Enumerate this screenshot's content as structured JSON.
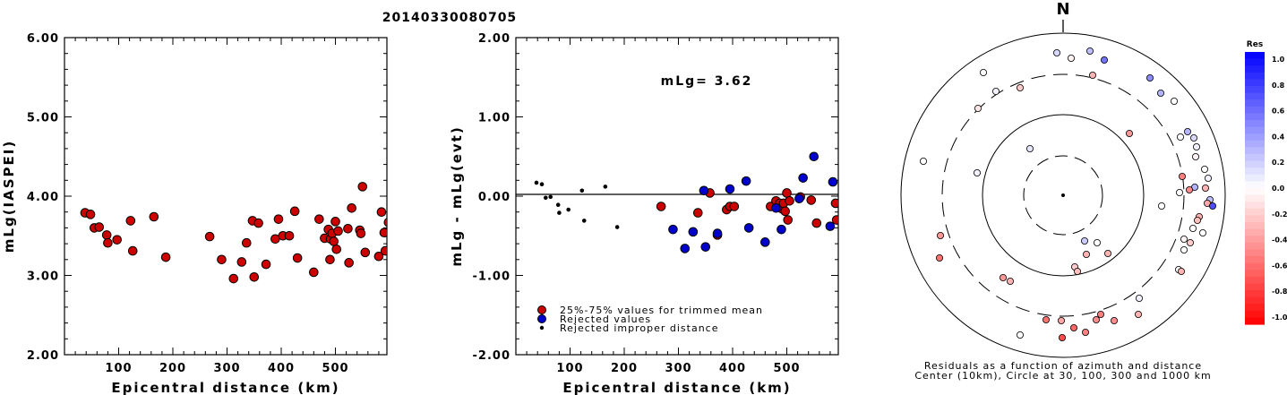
{
  "title": "20140330080705",
  "chart_data": [
    {
      "type": "scatter",
      "xlabel": "Epicentral distance (km)",
      "ylabel": "mLg(IASPEI)",
      "xlim": [
        0,
        595
      ],
      "ylim": [
        2.0,
        6.0
      ],
      "xticks": [
        "100",
        "200",
        "300",
        "400",
        "500"
      ],
      "yticks": [
        "2.00",
        "3.00",
        "4.00",
        "5.00",
        "6.00"
      ],
      "series": [
        {
          "color": "#cc0000",
          "points": [
            [
              38,
              3.79
            ],
            [
              48,
              3.77
            ],
            [
              55,
              3.6
            ],
            [
              64,
              3.61
            ],
            [
              78,
              3.51
            ],
            [
              80,
              3.41
            ],
            [
              97,
              3.45
            ],
            [
              122,
              3.69
            ],
            [
              126,
              3.31
            ],
            [
              165,
              3.74
            ],
            [
              187,
              3.23
            ],
            [
              268,
              3.49
            ],
            [
              290,
              3.2
            ],
            [
              312,
              2.96
            ],
            [
              327,
              3.17
            ],
            [
              336,
              3.41
            ],
            [
              347,
              3.69
            ],
            [
              350,
              2.98
            ],
            [
              358,
              3.66
            ],
            [
              372,
              3.14
            ],
            [
              389,
              3.46
            ],
            [
              395,
              3.71
            ],
            [
              403,
              3.5
            ],
            [
              415,
              3.5
            ],
            [
              425,
              3.81
            ],
            [
              430,
              3.22
            ],
            [
              460,
              3.04
            ],
            [
              470,
              3.71
            ],
            [
              480,
              3.47
            ],
            [
              487,
              3.58
            ],
            [
              490,
              3.2
            ],
            [
              491,
              3.46
            ],
            [
              494,
              3.53
            ],
            [
              497,
              3.43
            ],
            [
              500,
              3.68
            ],
            [
              502,
              3.33
            ],
            [
              505,
              3.56
            ],
            [
              523,
              3.59
            ],
            [
              525,
              3.16
            ],
            [
              530,
              3.85
            ],
            [
              545,
              3.57
            ],
            [
              547,
              3.53
            ],
            [
              550,
              4.12
            ],
            [
              555,
              3.29
            ],
            [
              580,
              3.24
            ],
            [
              585,
              3.8
            ],
            [
              590,
              3.54
            ],
            [
              592,
              3.31
            ],
            [
              598,
              3.67
            ]
          ]
        }
      ]
    },
    {
      "type": "scatter",
      "xlabel": "Epicentral distance (km)",
      "ylabel": "mLg - mLg(evt)",
      "xlim": [
        0,
        595
      ],
      "ylim": [
        -2.0,
        2.0
      ],
      "xticks": [
        "100",
        "200",
        "300",
        "400",
        "500"
      ],
      "yticks": [
        "-2.00",
        "-1.00",
        "0.00",
        "1.00",
        "2.00"
      ],
      "annotation": "mLg= 3.62",
      "legend": [
        "25%-75% values for trimmed mean",
        "Rejected values",
        "Rejected improper distance"
      ],
      "series": [
        {
          "name": "25%-75% values for trimmed mean",
          "color": "#cc0000",
          "points": [
            [
              268,
              -0.13
            ],
            [
              336,
              -0.21
            ],
            [
              358,
              0.04
            ],
            [
              372,
              -0.49
            ],
            [
              389,
              -0.17
            ],
            [
              395,
              -0.13
            ],
            [
              403,
              -0.13
            ],
            [
              470,
              -0.13
            ],
            [
              480,
              -0.06
            ],
            [
              487,
              -0.09
            ],
            [
              491,
              -0.16
            ],
            [
              494,
              -0.09
            ],
            [
              497,
              -0.19
            ],
            [
              500,
              0.04
            ],
            [
              502,
              -0.3
            ],
            [
              505,
              -0.06
            ],
            [
              525,
              -0.01
            ],
            [
              545,
              -0.05
            ],
            [
              555,
              -0.34
            ],
            [
              590,
              -0.09
            ],
            [
              592,
              -0.3
            ]
          ]
        },
        {
          "name": "Rejected values",
          "color": "#0000cc",
          "points": [
            [
              290,
              -0.42
            ],
            [
              312,
              -0.66
            ],
            [
              327,
              -0.45
            ],
            [
              347,
              0.07
            ],
            [
              350,
              -0.64
            ],
            [
              372,
              -0.47
            ],
            [
              395,
              0.09
            ],
            [
              425,
              0.19
            ],
            [
              430,
              -0.4
            ],
            [
              460,
              -0.58
            ],
            [
              480,
              -0.15
            ],
            [
              490,
              -0.42
            ],
            [
              523,
              -0.03
            ],
            [
              530,
              0.23
            ],
            [
              550,
              0.5
            ],
            [
              580,
              -0.38
            ],
            [
              585,
              0.18
            ]
          ]
        },
        {
          "name": "Rejected improper distance",
          "color": "#000000",
          "points": [
            [
              38,
              0.17
            ],
            [
              48,
              0.15
            ],
            [
              55,
              -0.02
            ],
            [
              64,
              -0.01
            ],
            [
              78,
              -0.11
            ],
            [
              80,
              -0.21
            ],
            [
              97,
              -0.17
            ],
            [
              122,
              0.07
            ],
            [
              126,
              -0.31
            ],
            [
              165,
              0.12
            ],
            [
              187,
              -0.39
            ]
          ]
        }
      ]
    },
    {
      "type": "scatter",
      "title": "N",
      "caption_line1": "Residuals as a function of azimuth and distance",
      "caption_line2": "Center (10km), Circle at 30, 100, 300 and 1000 km",
      "colorbar_title": "Res",
      "colorbar_ticks": [
        "1.0",
        "0.8",
        "0.6",
        "0.4",
        "0.2",
        "0.0",
        "-0.2",
        "-0.4",
        "-0.6",
        "-0.8",
        "-1.0"
      ],
      "residual_range": [
        -1.0,
        1.0
      ],
      "stations": [
        [
          1180,
          59,
          0.15
        ],
        [
          1196,
          65,
          -0.05
        ],
        [
          1217,
          57,
          0.25
        ],
        [
          1233,
          67,
          0.55
        ],
        [
          1220,
          84,
          -0.3
        ],
        [
          1098,
          81,
          0.0
        ],
        [
          1112,
          102,
          0.05
        ],
        [
          1139,
          98,
          -0.2
        ],
        [
          1284,
          87,
          0.45
        ],
        [
          1296,
          104,
          0.3
        ],
        [
          1311,
          113,
          0.0
        ],
        [
          1092,
          121,
          -0.1
        ],
        [
          1261,
          149,
          -0.4
        ],
        [
          1150,
          166,
          0.1
        ],
        [
          1031,
          180,
          0.0
        ],
        [
          1091,
          193,
          0.05
        ],
        [
          1318,
          153,
          0.0
        ],
        [
          1326,
          147,
          0.3
        ],
        [
          1333,
          154,
          0.15
        ],
        [
          1336,
          164,
          0.05
        ],
        [
          1335,
          175,
          -0.05
        ],
        [
          1345,
          189,
          0.0
        ],
        [
          1349,
          199,
          0.05
        ],
        [
          1320,
          197,
          -0.5
        ],
        [
          1334,
          209,
          0.3
        ],
        [
          1346,
          210,
          -0.3
        ],
        [
          1328,
          212,
          -0.45
        ],
        [
          1317,
          215,
          0.0
        ],
        [
          1351,
          223,
          0.25
        ],
        [
          1348,
          227,
          -0.35
        ],
        [
          1354,
          230,
          0.7
        ],
        [
          1297,
          230,
          0.0
        ],
        [
          1339,
          242,
          -0.3
        ],
        [
          1337,
          246,
          -0.25
        ],
        [
          1332,
          255,
          0.0
        ],
        [
          1343,
          260,
          0.0
        ],
        [
          1322,
          267,
          -0.05
        ],
        [
          1329,
          271,
          -0.2
        ],
        [
          1322,
          279,
          0.0
        ],
        [
          1050,
          263,
          -0.4
        ],
        [
          1211,
          269,
          0.2
        ],
        [
          1225,
          271,
          0.0
        ],
        [
          1213,
          284,
          -0.3
        ],
        [
          1237,
          283,
          -0.3
        ],
        [
          1049,
          288,
          -0.55
        ],
        [
          1200,
          298,
          -0.2
        ],
        [
          1203,
          303,
          -0.25
        ],
        [
          1316,
          301,
          0.0
        ],
        [
          1319,
          303,
          -0.3
        ],
        [
          1120,
          310,
          -0.4
        ],
        [
          1128,
          314,
          -0.3
        ],
        [
          1272,
          333,
          0.05
        ],
        [
          1271,
          351,
          -0.3
        ],
        [
          1244,
          358,
          -0.45
        ],
        [
          1229,
          351,
          -0.5
        ],
        [
          1224,
          357,
          -0.45
        ],
        [
          1168,
          357,
          -0.55
        ],
        [
          1185,
          358,
          -0.35
        ],
        [
          1199,
          366,
          -0.6
        ],
        [
          1212,
          371,
          -0.5
        ],
        [
          1186,
          377,
          -0.7
        ],
        [
          1139,
          374,
          0.0
        ]
      ]
    }
  ]
}
